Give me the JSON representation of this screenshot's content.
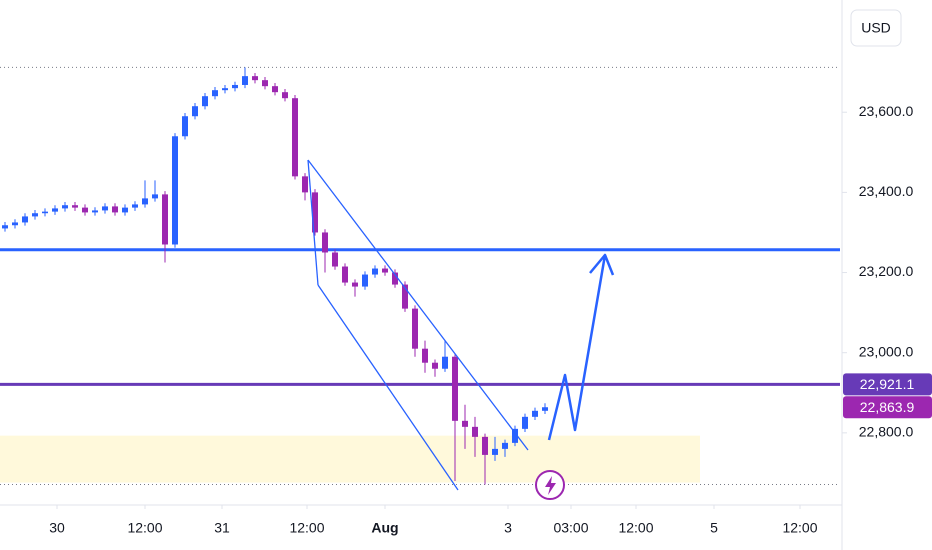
{
  "chart_data": {
    "type": "candlestick",
    "currency": "USD",
    "up_color": "#2962ff",
    "down_color": "#9c27b0",
    "xlim": [
      0,
      210
    ],
    "ylim": [
      22620,
      23880
    ],
    "xticks": [
      {
        "value": 14.25,
        "label": "30"
      },
      {
        "value": 36.25,
        "label": "12:00"
      },
      {
        "value": 55.5,
        "label": "31"
      },
      {
        "value": 76.75,
        "label": "12:00"
      },
      {
        "value": 96.25,
        "label": "Aug"
      },
      {
        "value": 127,
        "label": "3"
      },
      {
        "value": 142.75,
        "label": "03:00"
      },
      {
        "value": 159,
        "label": "12:00"
      },
      {
        "value": 178.5,
        "label": "5"
      },
      {
        "value": 200,
        "label": "12:00"
      }
    ],
    "yticks": [
      {
        "value": 22800,
        "label": "22,800.0"
      },
      {
        "value": 23000,
        "label": "23,000.0"
      },
      {
        "value": 23200,
        "label": "23,200.0"
      },
      {
        "value": 23400,
        "label": "23,400.0"
      },
      {
        "value": 23600,
        "label": "23,600.0"
      }
    ],
    "x": [
      1.25,
      3.75,
      6.25,
      8.75,
      11.25,
      13.75,
      16.25,
      18.75,
      21.25,
      23.75,
      26.25,
      28.75,
      31.25,
      33.75,
      36.25,
      38.75,
      41.25,
      43.75,
      46.25,
      48.75,
      51.25,
      53.75,
      56.25,
      58.75,
      61.25,
      63.75,
      66.25,
      68.75,
      71.25,
      73.75,
      76.25,
      78.75,
      81.25,
      83.75,
      86.25,
      88.75,
      91.25,
      93.75,
      96.25,
      98.75,
      101.25,
      103.75,
      106.25,
      108.75,
      111.25,
      113.75,
      116.25,
      118.75,
      121.25,
      123.75,
      126.25,
      128.75,
      131.25,
      133.75,
      136.25
    ],
    "open": [
      23310,
      23318,
      23325,
      23340,
      23348,
      23352,
      23360,
      23368,
      23362,
      23350,
      23355,
      23365,
      23350,
      23362,
      23370,
      23385,
      23395,
      23270,
      23540,
      23590,
      23615,
      23640,
      23655,
      23660,
      23668,
      23690,
      23680,
      23665,
      23650,
      23635,
      23440,
      23400,
      23300,
      23250,
      23215,
      23175,
      23165,
      23195,
      23210,
      23200,
      23170,
      23110,
      23010,
      22975,
      22960,
      22990,
      22830,
      22815,
      22790,
      22745,
      22760,
      22775,
      22810,
      22840,
      22855
    ],
    "high": [
      23326,
      23333,
      23348,
      23356,
      23360,
      23368,
      23376,
      23376,
      23370,
      23363,
      23373,
      23373,
      23370,
      23378,
      23430,
      23430,
      23403,
      23548,
      23598,
      23623,
      23648,
      23663,
      23668,
      23676,
      23712,
      23698,
      23688,
      23673,
      23658,
      23643,
      23448,
      23408,
      23308,
      23258,
      23223,
      23183,
      23203,
      23218,
      23218,
      23208,
      23178,
      23118,
      23030,
      22983,
      23030,
      22998,
      22870,
      22840,
      22798,
      22790,
      22783,
      22818,
      22848,
      22863,
      22874
    ],
    "low": [
      23302,
      23310,
      23317,
      23332,
      23340,
      23344,
      23352,
      23354,
      23342,
      23342,
      23347,
      23342,
      23342,
      23354,
      23362,
      23377,
      23225,
      23262,
      23532,
      23582,
      23607,
      23632,
      23647,
      23652,
      23660,
      23672,
      23657,
      23642,
      23627,
      23432,
      23380,
      23292,
      23200,
      23207,
      23167,
      23140,
      23157,
      23187,
      23192,
      23162,
      23102,
      22990,
      22950,
      22940,
      22952,
      22680,
      22760,
      22740,
      22671,
      22730,
      22740,
      22767,
      22802,
      22832,
      22847
    ],
    "close": [
      23318,
      23325,
      23340,
      23348,
      23352,
      23360,
      23368,
      23362,
      23350,
      23355,
      23365,
      23350,
      23362,
      23370,
      23385,
      23395,
      23270,
      23540,
      23590,
      23615,
      23640,
      23655,
      23660,
      23668,
      23690,
      23680,
      23665,
      23650,
      23635,
      23440,
      23400,
      23300,
      23250,
      23215,
      23175,
      23165,
      23195,
      23210,
      23200,
      23170,
      23110,
      23010,
      22975,
      22960,
      22990,
      22830,
      22815,
      22790,
      22745,
      22760,
      22775,
      22810,
      22840,
      22855,
      22863.9
    ],
    "range_lines": [
      23712,
      22671
    ],
    "zone": {
      "xlim": [
        0,
        175
      ],
      "ylim": [
        22676,
        22793
      ],
      "color": "#fff9db"
    },
    "levels": [
      {
        "value": 23257,
        "color": "#2962ff"
      },
      {
        "value": 22921.1,
        "label": "22,921.1",
        "color": "#673ab7"
      }
    ],
    "last_price": {
      "value": 22863.9,
      "label": "22,863.9",
      "color": "#9c27b0"
    }
  }
}
